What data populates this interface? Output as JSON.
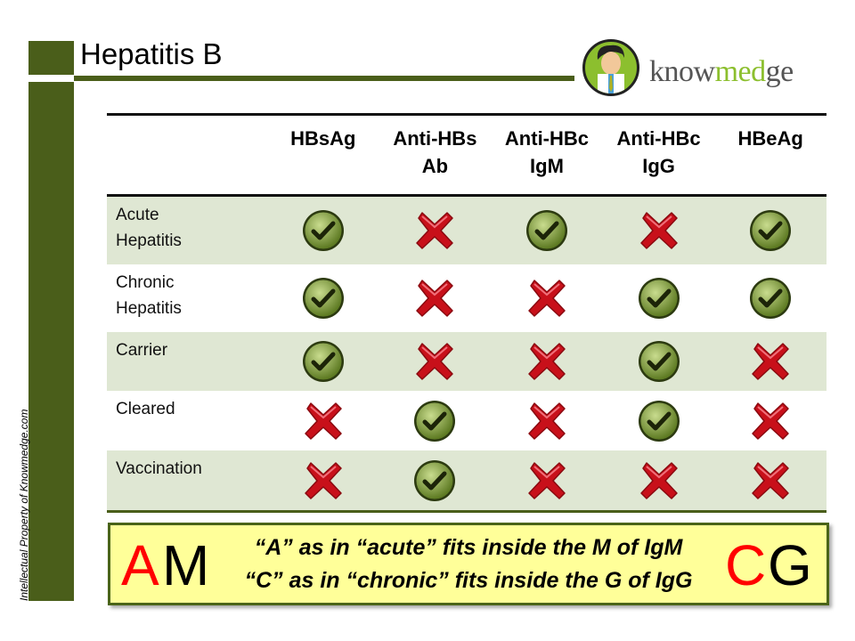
{
  "title": "Hepatitis B",
  "watermark": "Intellectual Property of Knowmedge.com",
  "logo": {
    "text_pre": "know",
    "text_mid": "med",
    "text_post": "ge"
  },
  "colors": {
    "accent": "#4a5e1a",
    "row_alt": "#dfe7d3",
    "callout_bg": "#ffff99",
    "check": "#6b8c2a",
    "cross": "#c8101a",
    "logo_green": "#8cbf2e"
  },
  "table": {
    "columns": [
      {
        "line1": "HBsAg",
        "line2": ""
      },
      {
        "line1": "Anti-HBs",
        "line2": "Ab"
      },
      {
        "line1": "Anti-HBc",
        "line2": "IgM"
      },
      {
        "line1": "Anti-HBc",
        "line2": "IgG"
      },
      {
        "line1": "HBeAg",
        "line2": ""
      }
    ],
    "rows": [
      {
        "label1": "Acute",
        "label2": "Hepatitis",
        "values": [
          true,
          false,
          true,
          false,
          true
        ]
      },
      {
        "label1": "Chronic",
        "label2": "Hepatitis",
        "values": [
          true,
          false,
          false,
          true,
          true
        ]
      },
      {
        "label1": "Carrier",
        "label2": "",
        "values": [
          true,
          false,
          false,
          true,
          false
        ]
      },
      {
        "label1": "Cleared",
        "label2": "",
        "values": [
          false,
          true,
          false,
          true,
          false
        ]
      },
      {
        "label1": "Vaccination",
        "label2": "",
        "values": [
          false,
          true,
          false,
          false,
          false
        ]
      }
    ],
    "icons": {
      "true": "check-circle-icon",
      "false": "red-x-icon"
    }
  },
  "callout": {
    "line1": "“A” as in “acute” fits inside the M of IgM",
    "line2": "“C” as in “chronic” fits inside the G of IgG",
    "mnemonic_left_a": "A",
    "mnemonic_left_m": "M",
    "mnemonic_right_c": "C",
    "mnemonic_right_g": "G"
  }
}
